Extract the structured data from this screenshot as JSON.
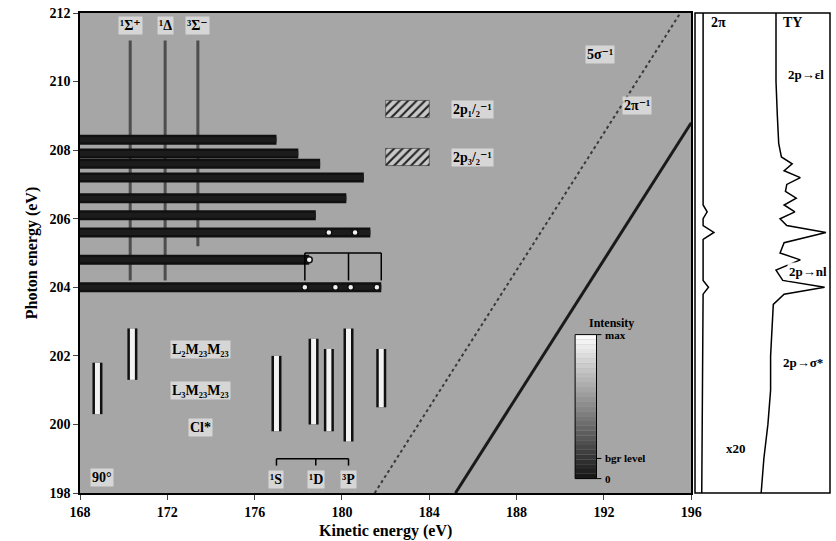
{
  "chart_data": [
    {
      "type": "scatter",
      "x_label": "Kinetic energy (eV)",
      "y_label": "Photon energy (eV)",
      "xlim": [
        168,
        196
      ],
      "xticks": [
        168,
        172,
        176,
        180,
        184,
        188,
        192,
        196
      ],
      "ylim": [
        198,
        212
      ],
      "yticks": [
        198,
        200,
        202,
        204,
        206,
        208,
        210,
        212
      ],
      "grid": false,
      "series": [
        {
          "type": "line",
          "color": "#4d4d4d",
          "line_style": "solid",
          "x": [
            170.3,
            170.3,
            null,
            171.9,
            171.9,
            null,
            173.4,
            173.4
          ],
          "y": [
            204.2,
            211.2,
            null,
            204.2,
            211.2,
            null,
            205.2,
            211.2
          ]
        },
        {
          "type": "band",
          "color": "#1c1c1c",
          "x": [
            168,
            181.8,
            null,
            168,
            178.5,
            null,
            168,
            181.3,
            null,
            168,
            178.8,
            null,
            168,
            180.2,
            null,
            168,
            181.0,
            null,
            168,
            179.0,
            null,
            168,
            178.0,
            null,
            168,
            177.0
          ],
          "y": [
            204.0,
            204.0,
            null,
            204.8,
            204.8,
            null,
            205.6,
            205.6,
            null,
            206.1,
            206.1,
            null,
            206.6,
            206.6,
            null,
            207.2,
            207.2,
            null,
            207.6,
            207.6,
            null,
            207.9,
            207.9,
            null,
            208.3,
            208.3
          ]
        },
        {
          "type": "band",
          "color": "#f2f2f2",
          "x": [
            168.8,
            168.8,
            null,
            170.4,
            170.4,
            null,
            177.0,
            177.0,
            null,
            178.7,
            178.7,
            null,
            179.4,
            179.4,
            null,
            180.3,
            180.3,
            null,
            181.8,
            181.8
          ],
          "y": [
            200.3,
            201.8,
            null,
            201.3,
            202.8,
            null,
            199.8,
            202.0,
            null,
            200.0,
            202.5,
            null,
            199.8,
            202.2,
            null,
            199.5,
            202.8,
            null,
            200.5,
            202.2
          ]
        },
        {
          "type": "scatter",
          "color": "#f2f2f2",
          "marker": "circle",
          "x": [
            178.3,
            179.7,
            180.4,
            181.6,
            178.5,
            179.4,
            180.6
          ],
          "y": [
            204.0,
            204.0,
            204.0,
            204.0,
            204.8,
            205.6,
            205.6
          ]
        },
        {
          "type": "line",
          "color": "#1a1a1a",
          "line_style": "solid",
          "x": [
            185.2,
            196
          ],
          "y": [
            198,
            208.8
          ]
        },
        {
          "type": "line",
          "color": "#3a3a3a",
          "line_style": "dotted",
          "x": [
            181.5,
            195.5
          ],
          "y": [
            198,
            212
          ]
        },
        {
          "type": "area",
          "color": "#222222",
          "line_style": "hatched",
          "x": [
            182,
            184,
            184,
            182,
            182,
            null,
            182,
            184,
            184,
            182,
            182
          ],
          "y": [
            208.95,
            208.95,
            209.45,
            209.45,
            208.95,
            null,
            207.55,
            207.55,
            208.05,
            208.05,
            207.55
          ]
        }
      ],
      "annotations": [
        {
          "text": "¹Σ⁺",
          "x": 170.3,
          "y": 211.65
        },
        {
          "text": "¹Δ",
          "x": 171.9,
          "y": 211.65
        },
        {
          "text": "³Σ⁻",
          "x": 173.4,
          "y": 211.65
        },
        {
          "text": "2p₁/₂⁻¹",
          "x": 186.0,
          "y": 209.2
        },
        {
          "text": "2p₃/₂⁻¹",
          "x": 186.0,
          "y": 207.8
        },
        {
          "text": "5σ⁻¹",
          "x": 191.8,
          "y": 210.8
        },
        {
          "text": "2π⁻¹",
          "x": 193.5,
          "y": 209.3
        },
        {
          "text": "L₂M₂₃M₂₃",
          "x": 173.5,
          "y": 202.2
        },
        {
          "text": "L₃M₂₃M₂₃",
          "x": 173.5,
          "y": 201.0
        },
        {
          "text": "Cl*",
          "x": 173.5,
          "y": 199.9
        },
        {
          "text": "¹S",
          "x": 177.0,
          "y": 198.4
        },
        {
          "text": "¹D",
          "x": 178.8,
          "y": 198.4
        },
        {
          "text": "³P",
          "x": 180.3,
          "y": 198.4
        },
        {
          "text": "90°",
          "x": 169.0,
          "y": 198.45
        }
      ],
      "brackets": [
        {
          "x": [
            177.0,
            178.8,
            180.3
          ],
          "y": 199.0,
          "y_end": 198.8
        },
        {
          "x": [
            178.3,
            180.3,
            181.8
          ],
          "y": 205.0,
          "y_end": 204.2
        }
      ],
      "colorbar": {
        "title": "Intensity",
        "range": [
          0,
          1
        ],
        "ticks": [
          {
            "value": 1,
            "label": "max"
          },
          {
            "value": 0.14,
            "label": "bgr level"
          },
          {
            "value": 0,
            "label": "0"
          }
        ]
      }
    },
    {
      "type": "line",
      "xlim": [
        0,
        1
      ],
      "tick_labels": false,
      "grid": false,
      "series": [
        {
          "name": "2π",
          "color": "#000000",
          "y": [
            198,
            203.8,
            204.0,
            204.2,
            205.4,
            205.6,
            205.8,
            206.0,
            206.2,
            206.4,
            212
          ],
          "values": [
            0.05,
            0.06,
            0.1,
            0.06,
            0.06,
            0.14,
            0.06,
            0.06,
            0.09,
            0.06,
            0.06
          ]
        },
        {
          "name": "TY",
          "color": "#000000",
          "y": [
            198,
            199,
            200,
            201,
            202,
            202.8,
            203.5,
            203.8,
            204.0,
            204.2,
            204.5,
            204.8,
            205.0,
            205.3,
            205.6,
            205.8,
            206.0,
            206.2,
            206.4,
            206.6,
            206.8,
            207.0,
            207.2,
            207.4,
            207.6,
            207.8,
            208.2,
            209,
            210,
            211,
            212
          ],
          "values": [
            0.49,
            0.51,
            0.54,
            0.56,
            0.56,
            0.57,
            0.58,
            0.66,
            0.96,
            0.65,
            0.6,
            0.78,
            0.63,
            0.66,
            0.97,
            0.68,
            0.63,
            0.74,
            0.66,
            0.75,
            0.67,
            0.68,
            0.78,
            0.66,
            0.72,
            0.64,
            0.62,
            0.61,
            0.6,
            0.6,
            0.6
          ]
        }
      ],
      "annotations": [
        {
          "text": "2p→εl",
          "x": 0.82,
          "y": 210.2
        },
        {
          "text": "2p→nl",
          "x": 0.84,
          "y": 204.45
        },
        {
          "text": "2p→σ*",
          "x": 0.8,
          "y": 201.8
        },
        {
          "text": "x20",
          "x": 0.3,
          "y": 199.3
        }
      ]
    }
  ]
}
